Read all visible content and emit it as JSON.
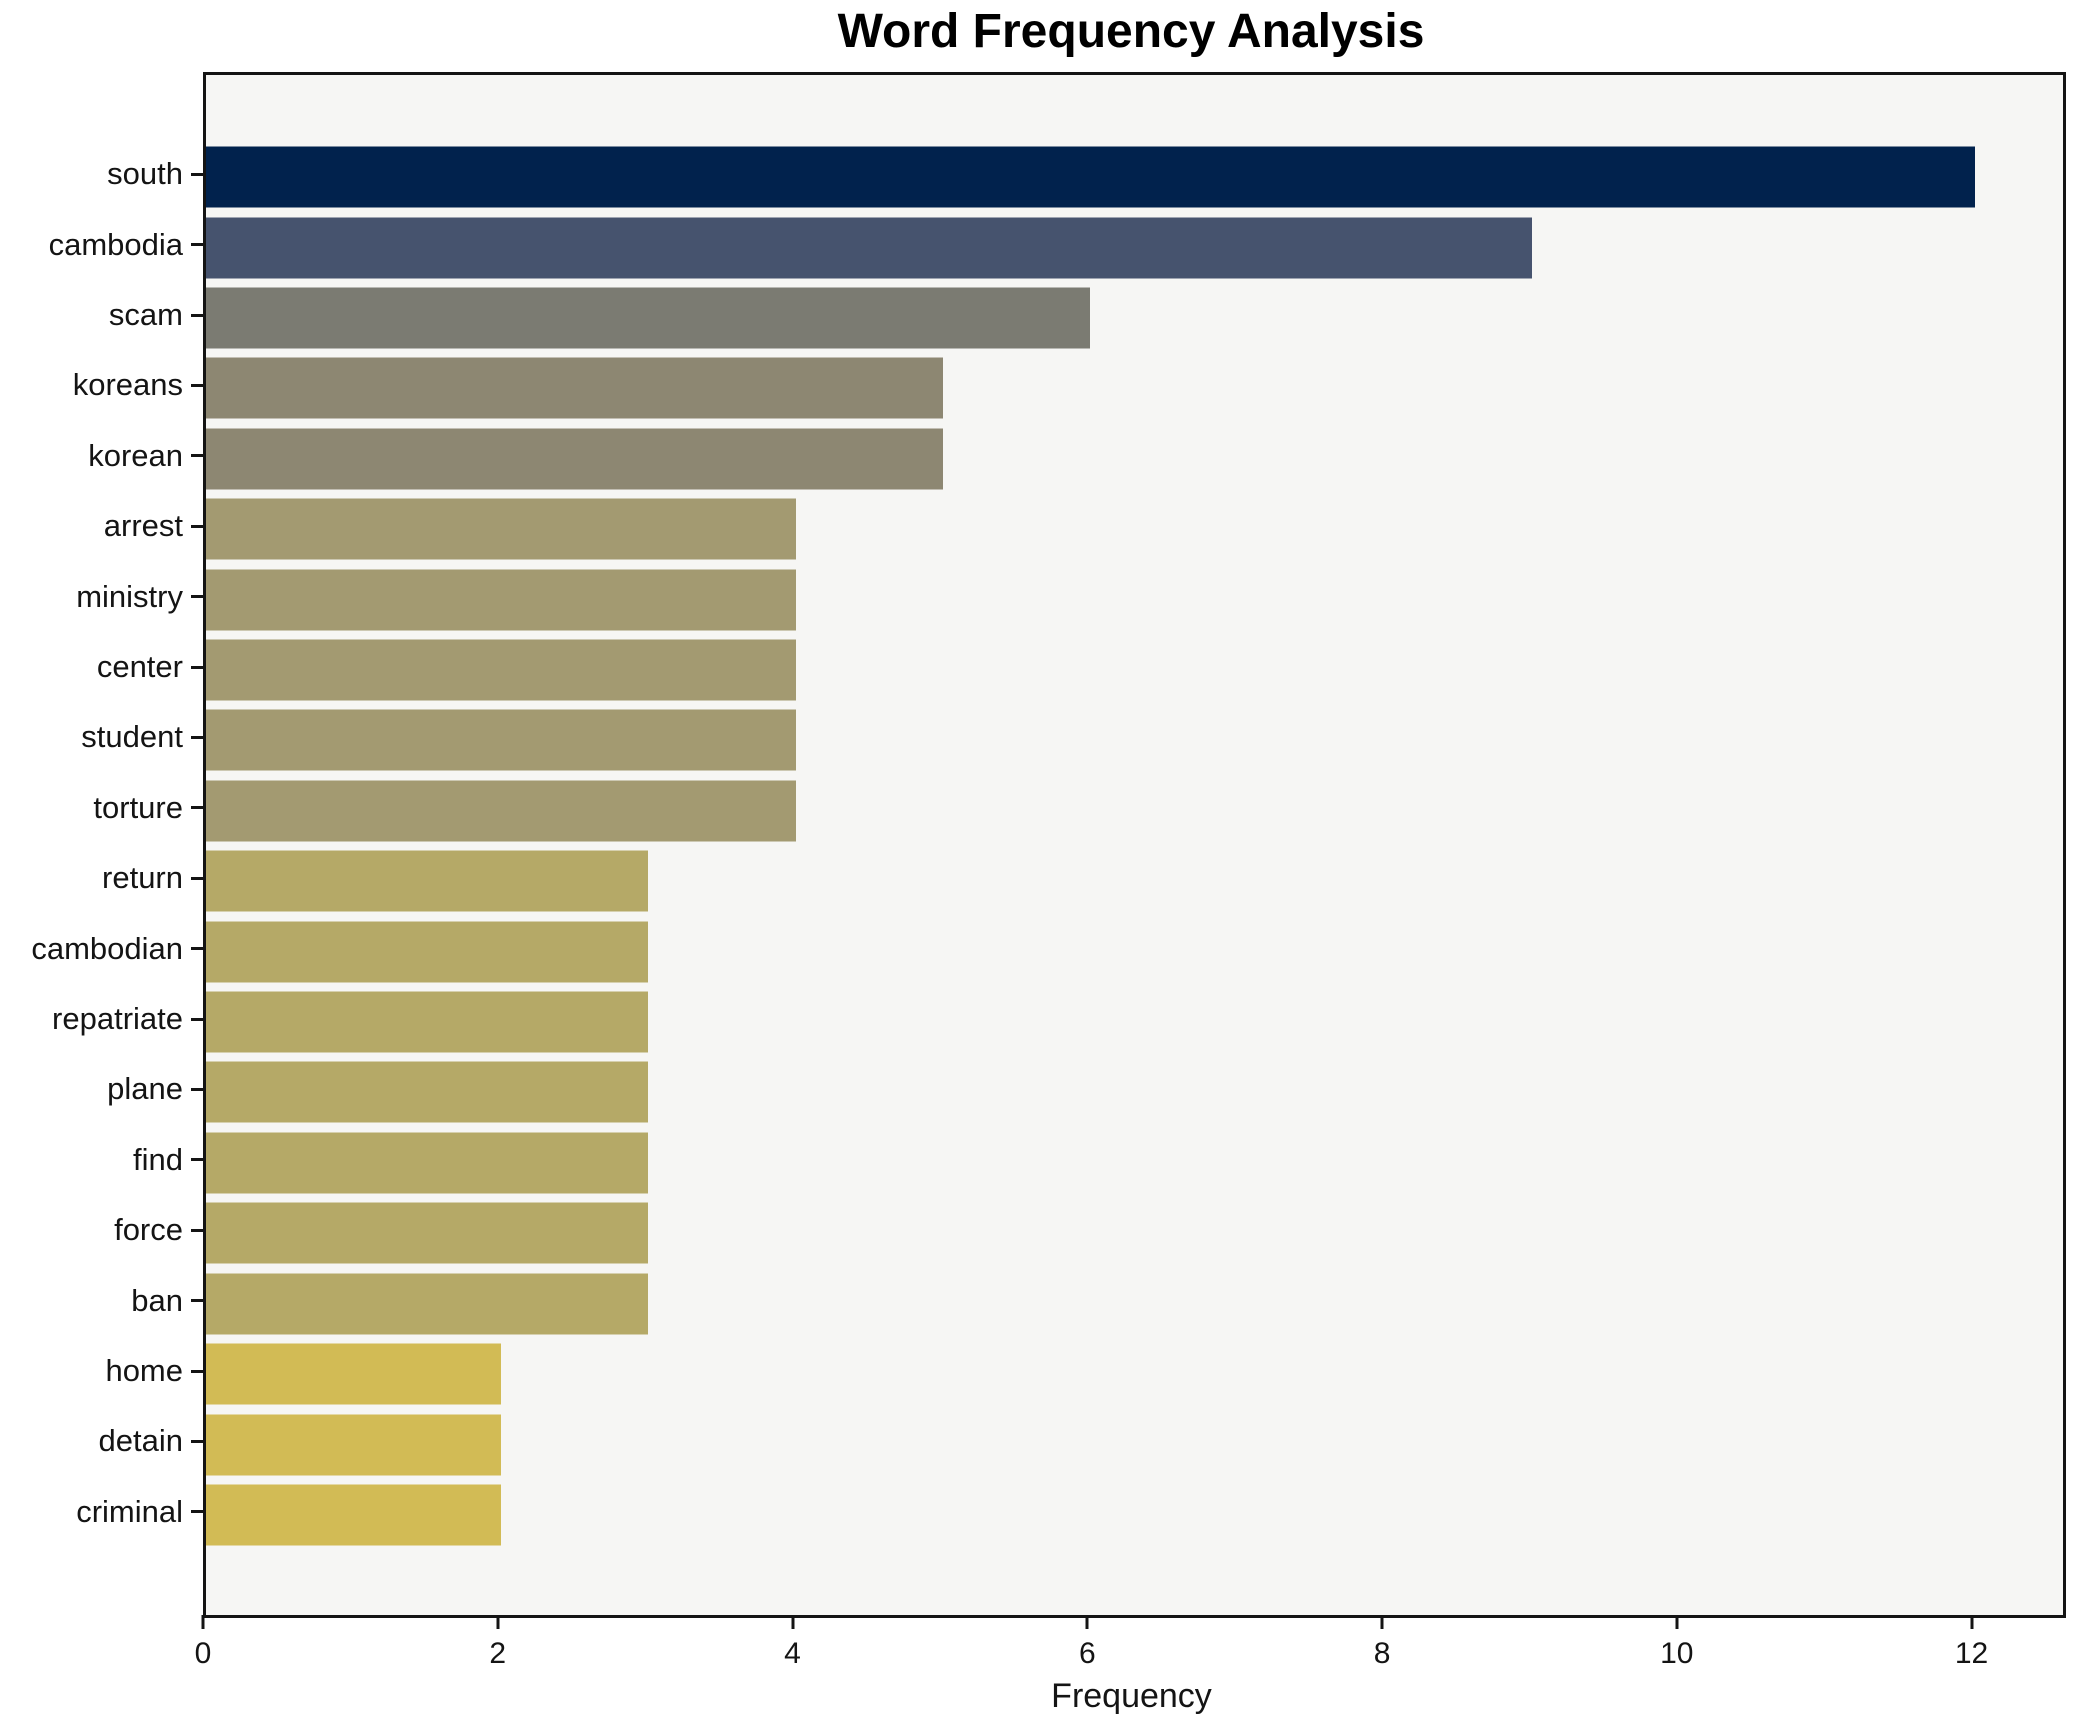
{
  "chart_data": {
    "type": "bar",
    "orientation": "horizontal",
    "title": "Word Frequency Analysis",
    "xlabel": "Frequency",
    "ylabel": "",
    "categories": [
      "south",
      "cambodia",
      "scam",
      "koreans",
      "korean",
      "arrest",
      "ministry",
      "center",
      "student",
      "torture",
      "return",
      "cambodian",
      "repatriate",
      "plane",
      "find",
      "force",
      "ban",
      "home",
      "detain",
      "criminal"
    ],
    "values": [
      12,
      9,
      6,
      5,
      5,
      4,
      4,
      4,
      4,
      4,
      3,
      3,
      3,
      3,
      3,
      3,
      3,
      2,
      2,
      2
    ],
    "bar_colors": [
      "#01224d",
      "#46536e",
      "#7b7b72",
      "#8d8772",
      "#8d8772",
      "#a39a71",
      "#a39a71",
      "#a39a71",
      "#a39a71",
      "#a39a71",
      "#b5a967",
      "#b5a967",
      "#b5a967",
      "#b5a967",
      "#b5a967",
      "#b5a967",
      "#b5a967",
      "#d2bb55",
      "#d2bb55",
      "#d2bb55"
    ],
    "x_ticks": [
      0,
      2,
      4,
      6,
      8,
      10,
      12
    ],
    "xlim": [
      0,
      12.6
    ],
    "grid": false,
    "legend": "none",
    "plot_background": "#f6f6f4",
    "figure_background": "#ffffff",
    "spine_color": "#141414",
    "text_color": "#141414"
  }
}
